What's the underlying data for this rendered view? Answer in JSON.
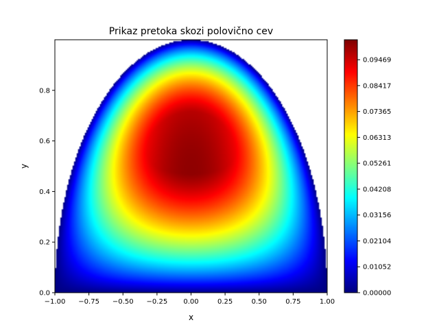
{
  "chart_data": {
    "type": "heatmap",
    "title": "Prikaz pretoka skozi polovično cev",
    "xlabel": "x",
    "ylabel": "y",
    "xlim": [
      -1.0,
      1.0
    ],
    "ylim": [
      0.0,
      1.0
    ],
    "x_ticks": [
      "−1.00",
      "−0.75",
      "−0.50",
      "−0.25",
      "0.00",
      "0.25",
      "0.50",
      "0.75",
      "1.00"
    ],
    "y_ticks": [
      "0.0",
      "0.2",
      "0.4",
      "0.6",
      "0.8"
    ],
    "domain_boundary": "upper half-ellipse y = sqrt(1 - x^2)",
    "max_value_location": {
      "x": 0.0,
      "y": 0.47
    },
    "colormap": "jet",
    "colorbar": {
      "min": 0.0,
      "max": 0.1028,
      "tick_labels": [
        "0.00000",
        "0.01052",
        "0.02104",
        "0.03156",
        "0.04208",
        "0.05261",
        "0.06313",
        "0.07365",
        "0.08417",
        "0.09469"
      ]
    },
    "grid": false
  }
}
